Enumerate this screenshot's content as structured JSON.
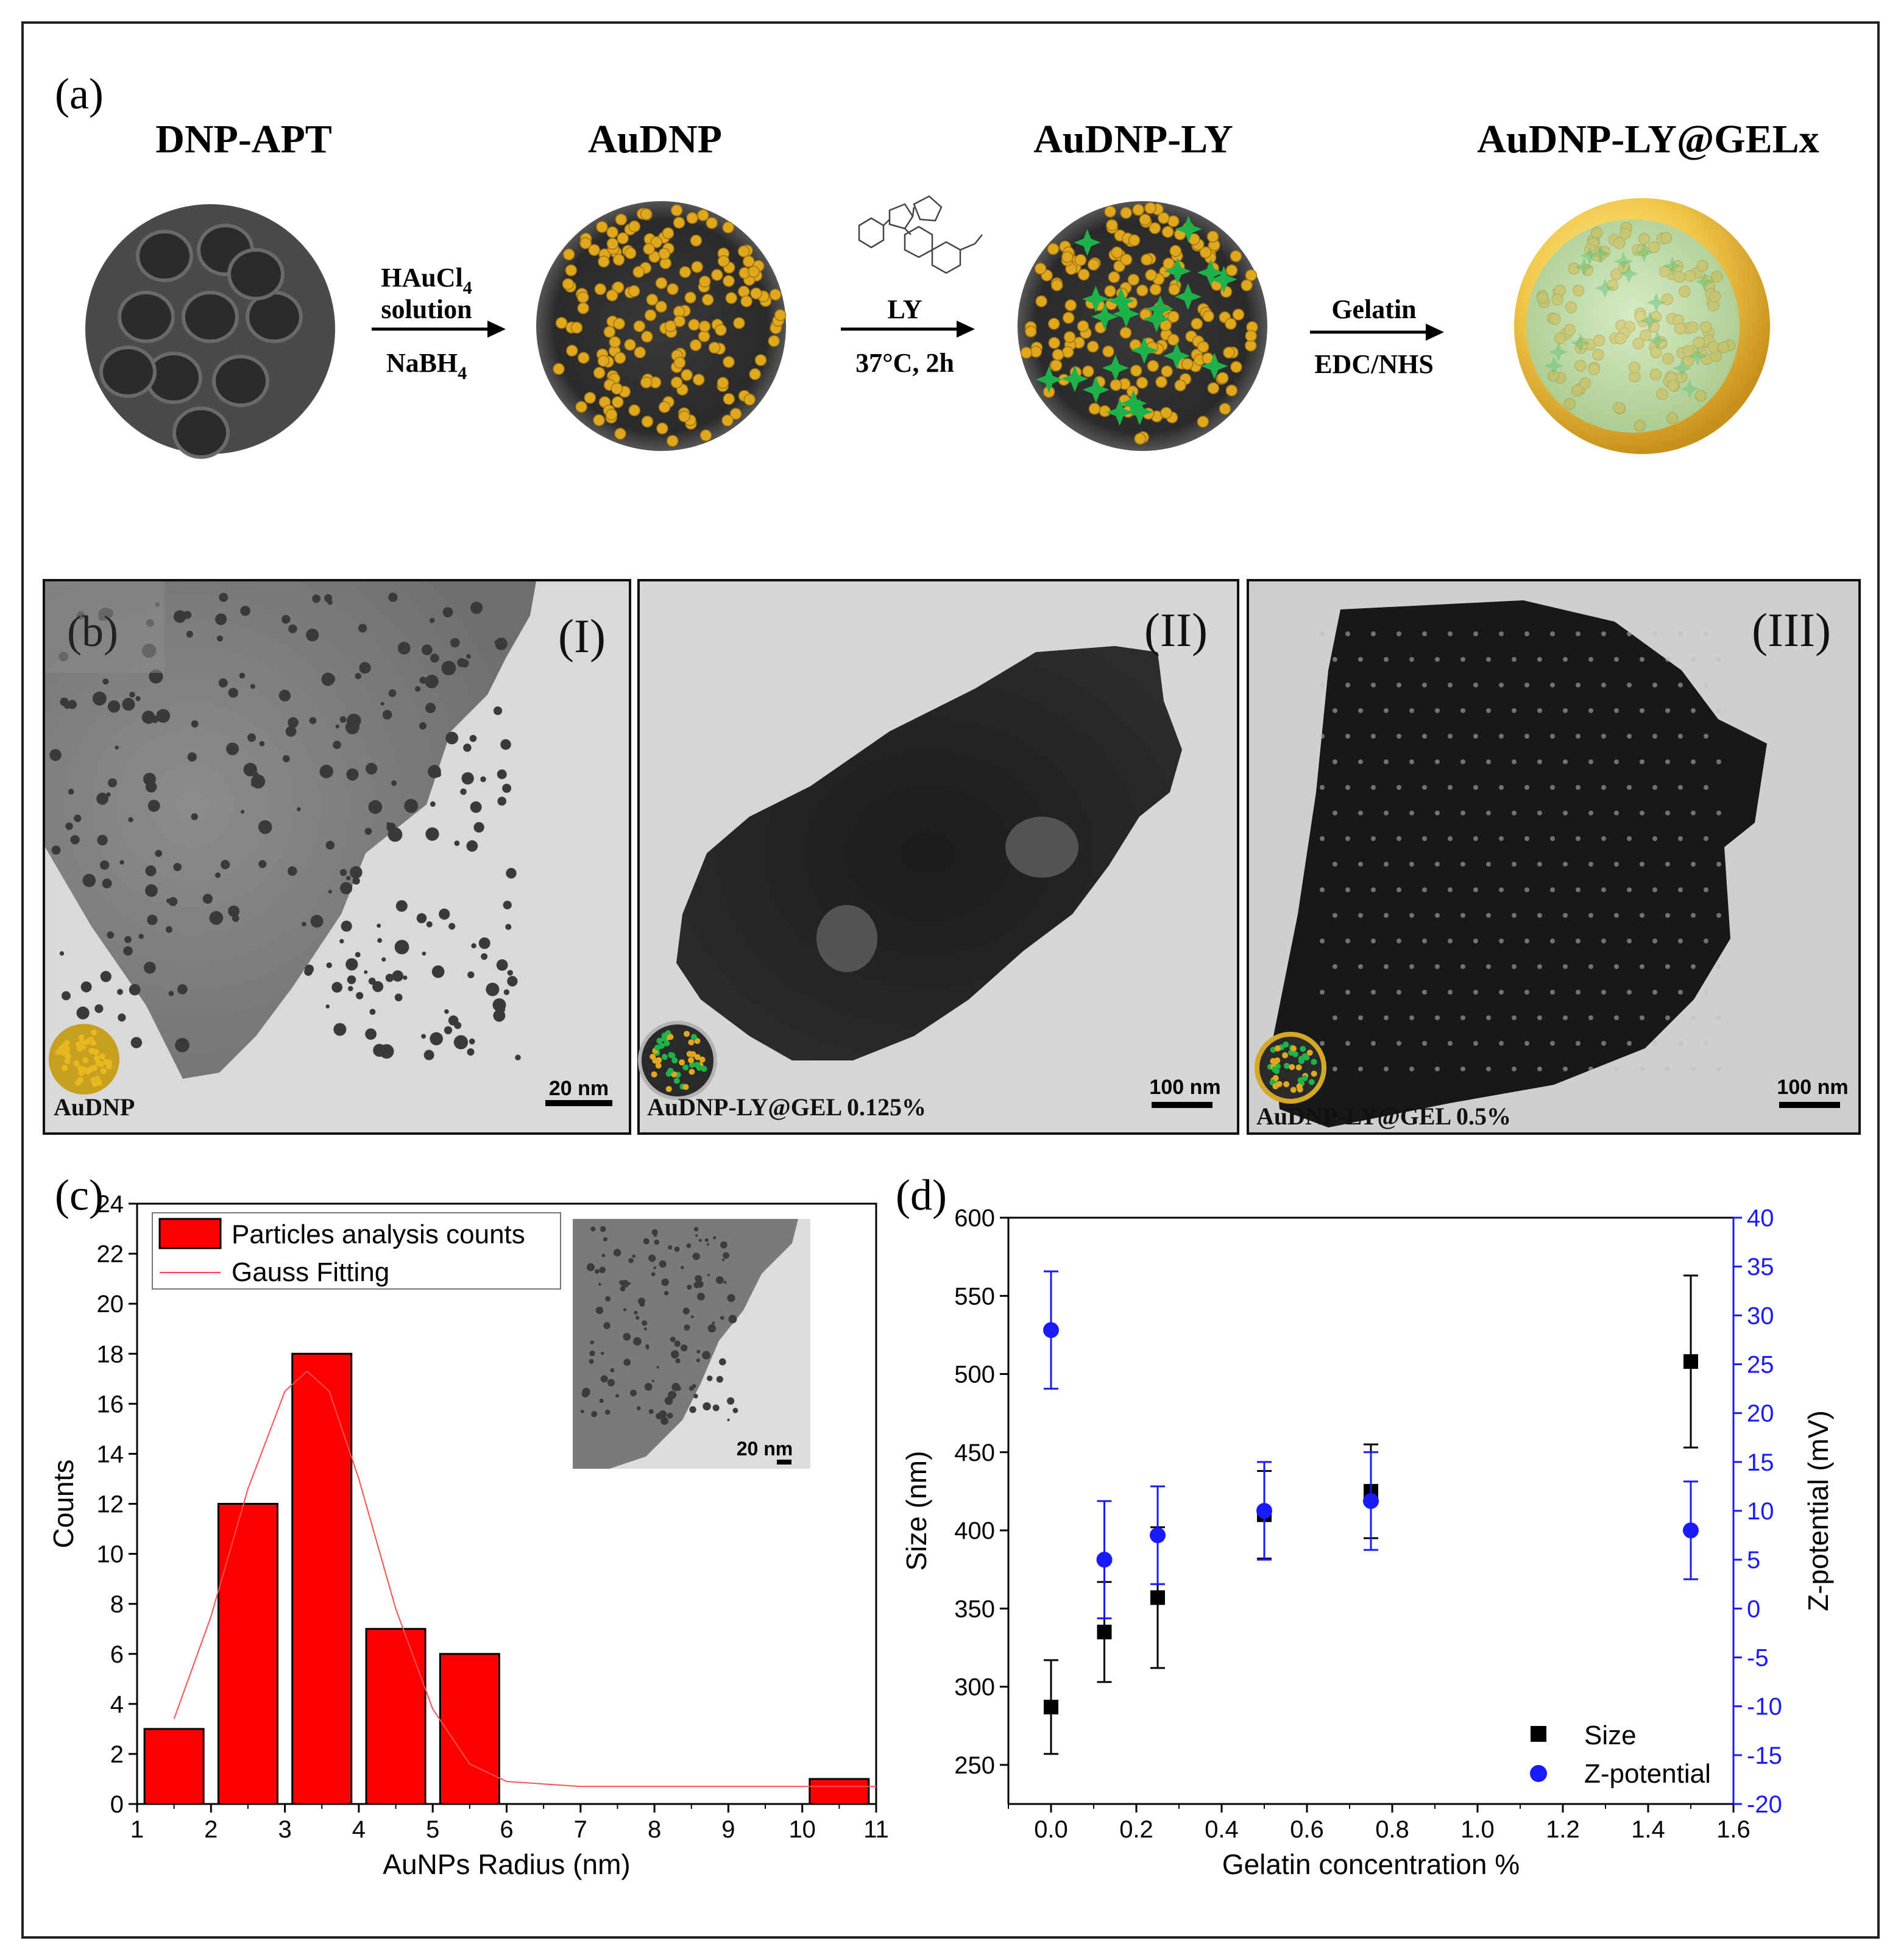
{
  "panel_a": {
    "letter": "(a)",
    "titles": [
      "DNP-APT",
      "AuDNP",
      "AuDNP-LY",
      "AuDNP-LY@GELx"
    ],
    "arrow1": {
      "top1": "HAuCl",
      "top1_sub": "4",
      "top2": "solution",
      "bottom": "NaBH",
      "bottom_sub": "4"
    },
    "arrow2": {
      "top": "LY",
      "bottom": "37°C, 2h"
    },
    "arrow3": {
      "top": "Gelatin",
      "bottom": "EDC/NHS"
    }
  },
  "panel_b": {
    "letter": "(b)",
    "images": [
      {
        "numeral": "(I)",
        "caption": "AuDNP",
        "scale": "20 nm"
      },
      {
        "numeral": "(II)",
        "caption": "AuDNP-LY@GEL 0.125%",
        "scale": "100 nm"
      },
      {
        "numeral": "(III)",
        "caption": "AuDNP-LY@GEL 0.5%",
        "scale": "100 nm"
      }
    ]
  },
  "panel_c": {
    "letter": "(c)",
    "inset_scale": "20 nm"
  },
  "panel_d": {
    "letter": "(d)"
  },
  "chart_data": [
    {
      "type": "bar",
      "xlabel": "AuNPs Radius (nm)",
      "ylabel": "Counts",
      "xlim": [
        1,
        11
      ],
      "ylim": [
        0,
        24
      ],
      "x_ticks": [
        "1",
        "2",
        "3",
        "4",
        "5",
        "6",
        "7",
        "8",
        "9",
        "10",
        "11"
      ],
      "y_ticks": [
        "0",
        "2",
        "4",
        "6",
        "8",
        "10",
        "12",
        "14",
        "16",
        "18",
        "20",
        "22",
        "24"
      ],
      "legend": [
        "Particles analysis counts",
        "Gauss Fitting"
      ],
      "bars": [
        {
          "x0": 1.1,
          "x1": 1.9,
          "value": 3
        },
        {
          "x0": 2.1,
          "x1": 2.9,
          "value": 12
        },
        {
          "x0": 3.1,
          "x1": 3.9,
          "value": 18
        },
        {
          "x0": 4.1,
          "x1": 4.9,
          "value": 7
        },
        {
          "x0": 5.1,
          "x1": 5.9,
          "value": 6
        },
        {
          "x0": 10.1,
          "x1": 10.9,
          "value": 1
        }
      ],
      "gauss_fit": {
        "x": [
          1.5,
          2.0,
          2.5,
          3.0,
          3.3,
          3.6,
          4.0,
          4.5,
          5.0,
          5.5,
          6.0,
          7.0,
          8.0,
          11.0
        ],
        "y": [
          3.4,
          7.5,
          12.6,
          16.5,
          17.3,
          16.5,
          13.0,
          7.8,
          3.8,
          1.6,
          0.9,
          0.7,
          0.7,
          0.7
        ]
      },
      "grid": false,
      "legend_position": "top-left"
    },
    {
      "type": "scatter",
      "xlabel": "Gelatin concentration %",
      "ylabel": "Size (nm)",
      "ylabel_right": "Z-potential (mV)",
      "xlim": [
        -0.1,
        1.6
      ],
      "ylim": [
        225,
        600
      ],
      "ylim_right": [
        -20,
        40
      ],
      "x_ticks": [
        "0.0",
        "0.2",
        "0.4",
        "0.6",
        "0.8",
        "1.0",
        "1.2",
        "1.4",
        "1.6"
      ],
      "y_ticks": [
        "250",
        "300",
        "350",
        "400",
        "450",
        "500",
        "550",
        "600"
      ],
      "y_ticks_right": [
        "-20",
        "-15",
        "-10",
        "-5",
        "0",
        "5",
        "10",
        "15",
        "20",
        "25",
        "30",
        "35",
        "40"
      ],
      "series": [
        {
          "name": "Size",
          "color": "#000000",
          "marker": "square",
          "axis": "left",
          "x": [
            0,
            0.125,
            0.25,
            0.5,
            0.75,
            1.5
          ],
          "y": [
            287,
            335,
            357,
            410,
            425,
            508
          ],
          "err": [
            30,
            32,
            45,
            28,
            30,
            55
          ]
        },
        {
          "name": "Z-potential",
          "color": "#1a1aff",
          "marker": "circle",
          "axis": "right",
          "x": [
            0,
            0.125,
            0.25,
            0.5,
            0.75,
            1.5
          ],
          "y": [
            28.5,
            5,
            7.5,
            10,
            11,
            8
          ],
          "err": [
            6,
            6,
            5,
            5,
            5,
            5
          ]
        }
      ],
      "grid": false,
      "legend_position": "bottom-right"
    }
  ]
}
